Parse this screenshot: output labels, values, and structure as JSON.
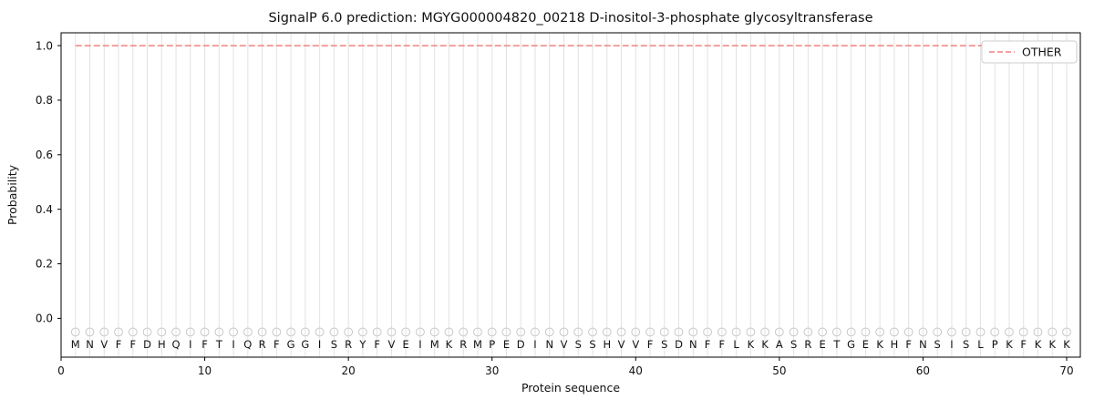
{
  "chart_data": {
    "type": "line",
    "title": "SignalP 6.0 prediction: MGYG000004820_00218 D-inositol-3-phosphate glycosyltransferase",
    "xlabel": "Protein sequence",
    "ylabel": "Probability",
    "x_ticks": [
      0,
      10,
      20,
      30,
      40,
      50,
      60,
      70
    ],
    "y_ticks": [
      0.0,
      0.2,
      0.4,
      0.6,
      0.8,
      1.0
    ],
    "xlim": [
      0,
      70.95
    ],
    "ylim": [
      -0.142,
      1.057
    ],
    "grid": "vertical-per-residue",
    "legend_position": "upper right",
    "x_start": 1,
    "sequence": [
      "M",
      "N",
      "V",
      "F",
      "F",
      "D",
      "H",
      "Q",
      "I",
      "F",
      "T",
      "I",
      "Q",
      "R",
      "F",
      "G",
      "G",
      "I",
      "S",
      "R",
      "Y",
      "F",
      "V",
      "E",
      "I",
      "M",
      "K",
      "R",
      "M",
      "P",
      "E",
      "D",
      "I",
      "N",
      "V",
      "S",
      "S",
      "H",
      "V",
      "V",
      "F",
      "S",
      "D",
      "N",
      "F",
      "F",
      "L",
      "K",
      "K",
      "A",
      "S",
      "R",
      "E",
      "T",
      "G",
      "E",
      "K",
      "H",
      "F",
      "N",
      "S",
      "I",
      "S",
      "L",
      "P",
      "K",
      "F",
      "K",
      "K",
      "K"
    ],
    "marker_y": -0.05,
    "marker_color": "#c9c9c9",
    "gridline_color": "#e2e2e2",
    "series": [
      {
        "name": "OTHER",
        "color": "#f08080",
        "style": "dashed",
        "values": [
          1.0,
          1.0,
          1.0,
          1.0,
          1.0,
          1.0,
          1.0,
          1.0,
          1.0,
          1.0,
          1.0,
          1.0,
          1.0,
          1.0,
          1.0,
          1.0,
          1.0,
          1.0,
          1.0,
          1.0,
          1.0,
          1.0,
          1.0,
          1.0,
          1.0,
          1.0,
          1.0,
          1.0,
          1.0,
          1.0,
          1.0,
          1.0,
          1.0,
          1.0,
          1.0,
          1.0,
          1.0,
          1.0,
          1.0,
          1.0,
          1.0,
          1.0,
          1.0,
          1.0,
          1.0,
          1.0,
          1.0,
          1.0,
          1.0,
          1.0,
          1.0,
          1.0,
          1.0,
          1.0,
          1.0,
          1.0,
          1.0,
          1.0,
          1.0,
          1.0,
          1.0,
          1.0,
          1.0,
          1.0,
          1.0,
          1.0,
          1.0,
          1.0,
          1.0,
          1.0
        ]
      }
    ]
  }
}
